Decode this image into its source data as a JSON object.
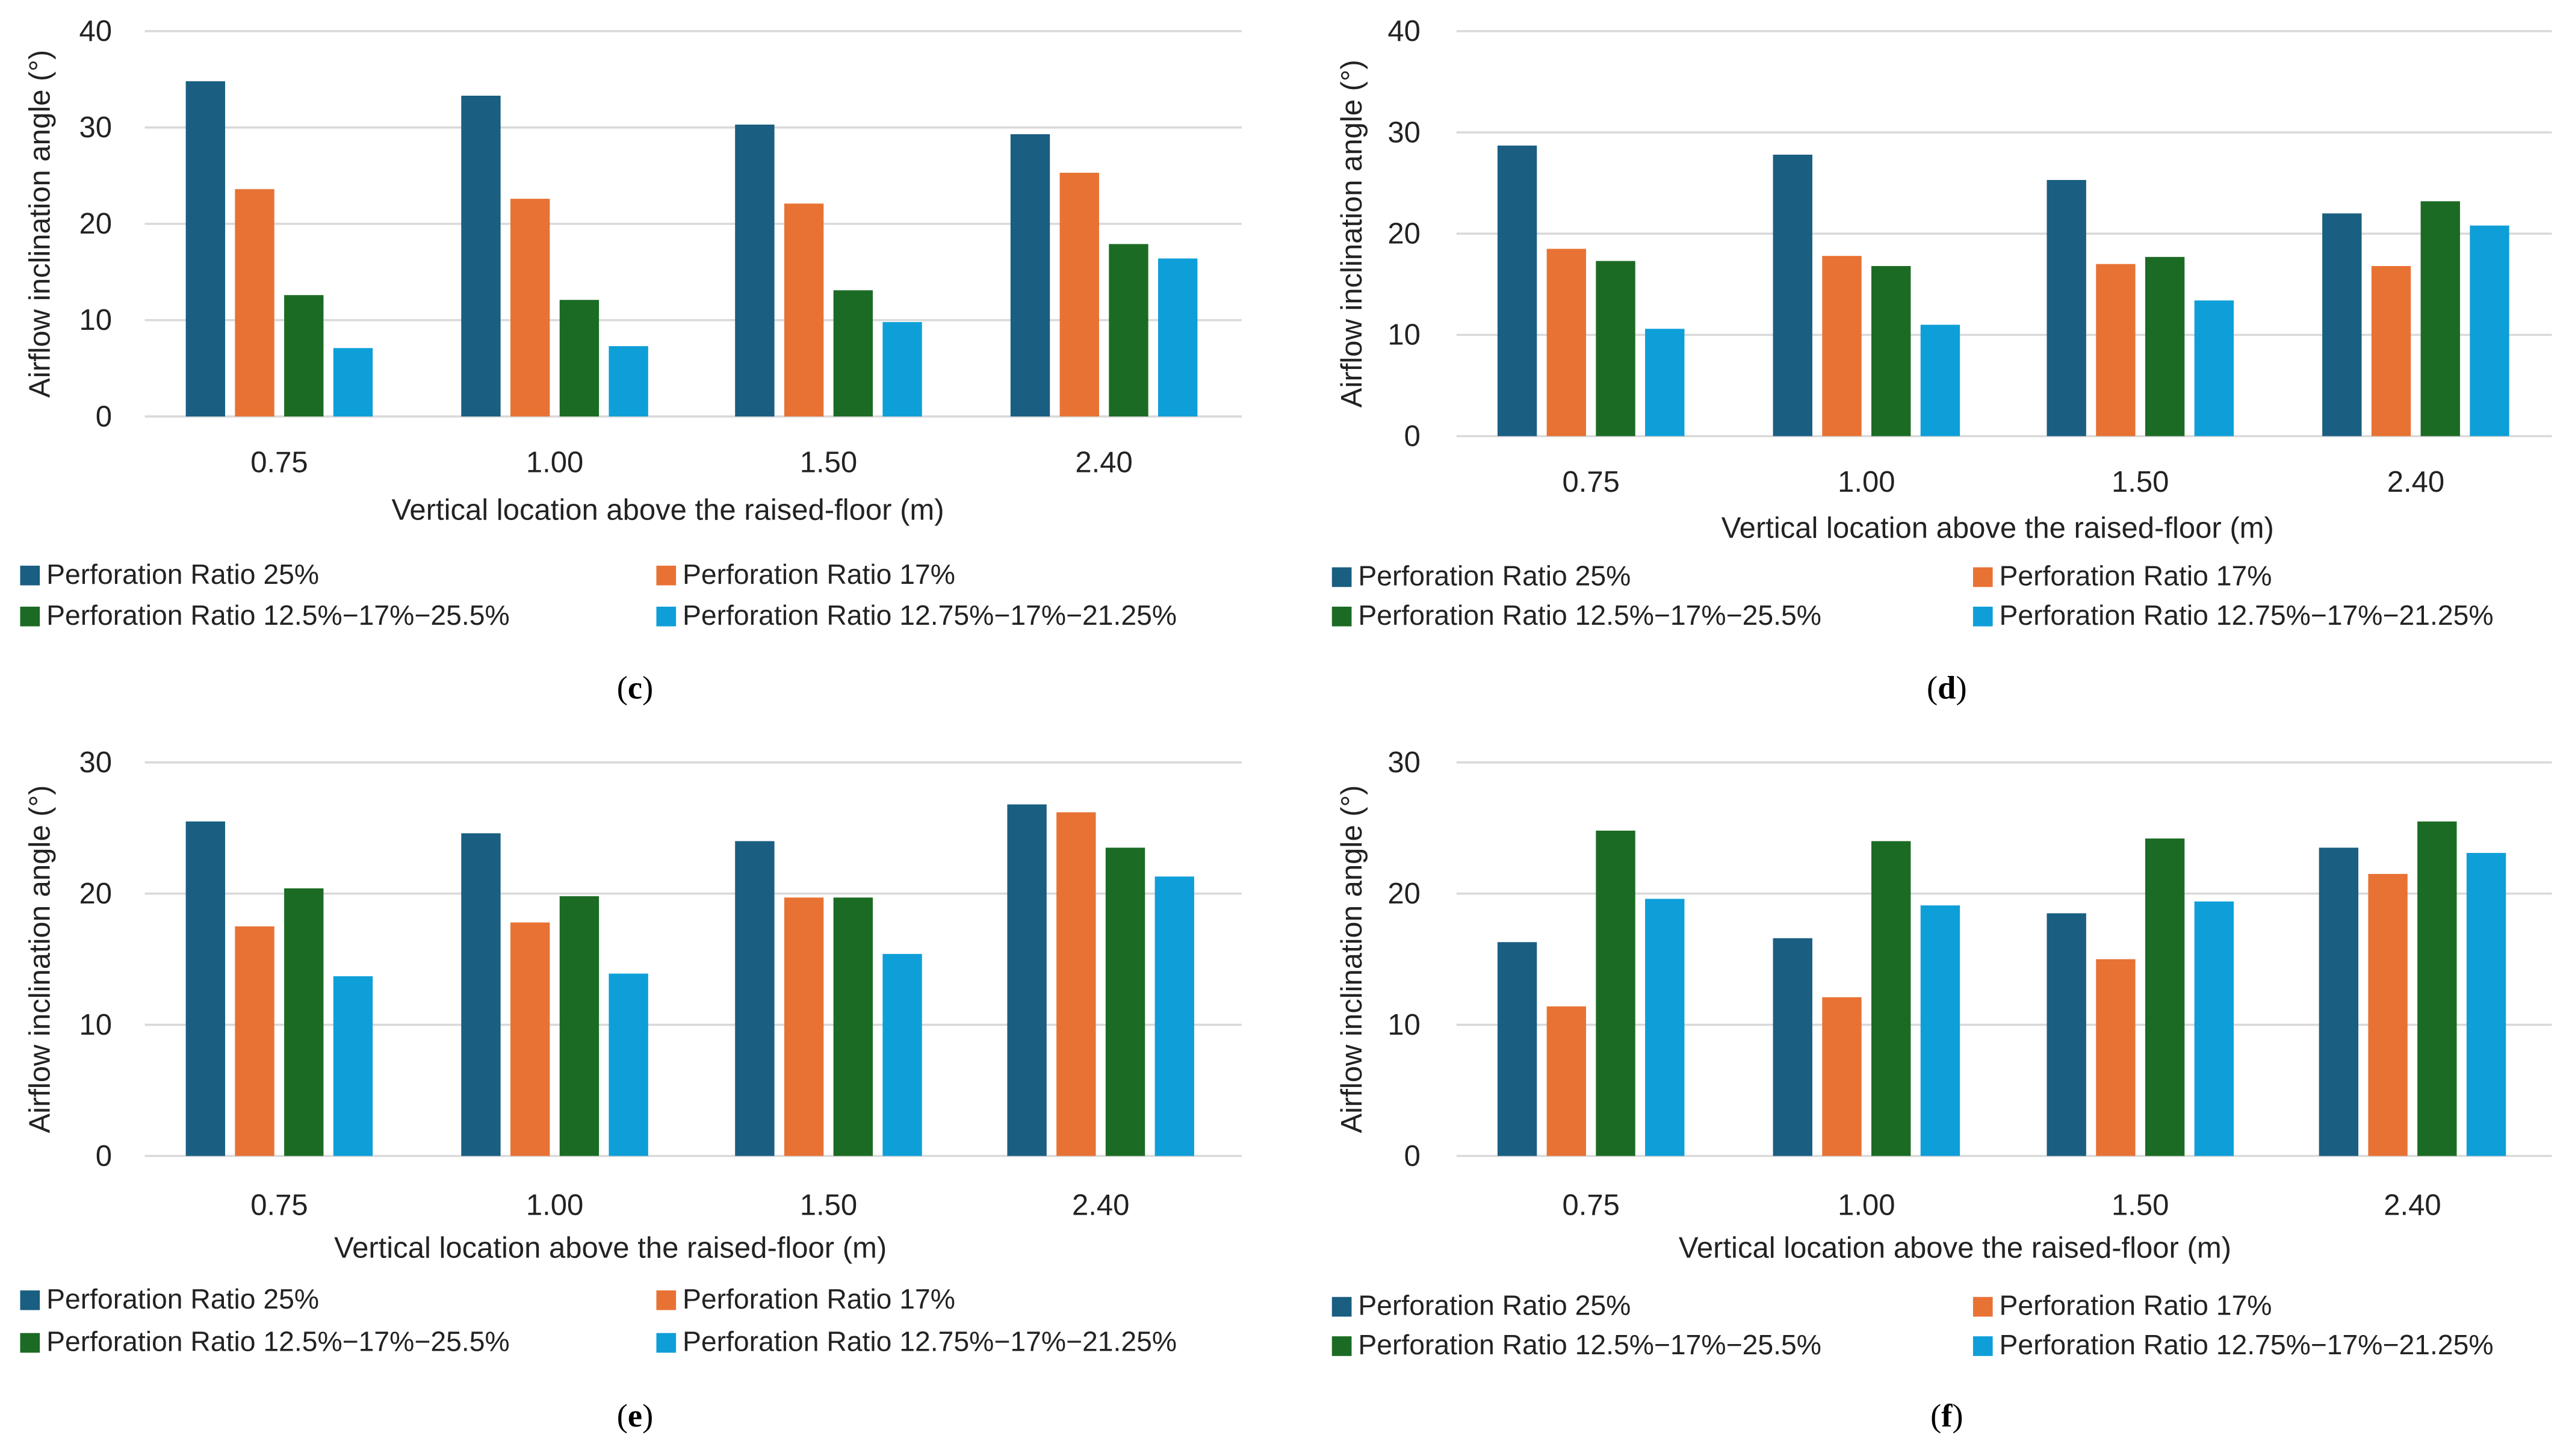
{
  "colors": {
    "s1": "#1a5e82",
    "s2": "#e87234",
    "s3": "#1c6b24",
    "s4": "#0e9fd8",
    "grid": "#d9d9d9"
  },
  "chart_data": [
    {
      "type": "bar",
      "panel": "c",
      "caption_letter": "c",
      "ylabel": "Airflow inclination angle (°)",
      "xlabel": "Vertical location above the raised-floor (m)",
      "ylim": [
        0,
        40
      ],
      "yticks": [
        "0",
        "10",
        "20",
        "30",
        "40"
      ],
      "categories": [
        "0.75",
        "1.00",
        "1.50",
        "2.40"
      ],
      "legend_position": "bottom",
      "series": [
        {
          "name": "Perforation Ratio 25%",
          "values": [
            34.8,
            33.3,
            30.3,
            29.3
          ]
        },
        {
          "name": "Perforation Ratio 17%",
          "values": [
            23.6,
            22.6,
            22.1,
            25.3
          ]
        },
        {
          "name": "Perforation Ratio 12.5%−17%−25.5%",
          "values": [
            12.6,
            12.1,
            13.1,
            17.9
          ]
        },
        {
          "name": "Perforation Ratio 12.75%−17%−21.25%",
          "values": [
            7.1,
            7.3,
            9.8,
            16.4
          ]
        }
      ]
    },
    {
      "type": "bar",
      "panel": "d",
      "caption_letter": "d",
      "ylabel": "Airflow inclination angle (°)",
      "xlabel": "Vertical location above the raised-floor (m)",
      "ylim": [
        0,
        40
      ],
      "yticks": [
        "0",
        "10",
        "20",
        "30",
        "40"
      ],
      "categories": [
        "0.75",
        "1.00",
        "1.50",
        "2.40"
      ],
      "legend_position": "bottom",
      "series": [
        {
          "name": "Perforation Ratio 25%",
          "values": [
            28.7,
            27.8,
            25.3,
            22.0
          ]
        },
        {
          "name": "Perforation Ratio 17%",
          "values": [
            18.5,
            17.8,
            17.0,
            16.8
          ]
        },
        {
          "name": "Perforation Ratio 12.5%−17%−25.5%",
          "values": [
            17.3,
            16.8,
            17.7,
            23.2
          ]
        },
        {
          "name": "Perforation Ratio 12.75%−17%−21.25%",
          "values": [
            10.6,
            11.0,
            13.4,
            20.8
          ]
        }
      ]
    },
    {
      "type": "bar",
      "panel": "e",
      "caption_letter": "e",
      "ylabel": "Airflow inclination angle (°)",
      "xlabel": "Vertical location above the raised-floor (m)",
      "ylim": [
        0,
        30
      ],
      "yticks": [
        "0",
        "10",
        "20",
        "30"
      ],
      "categories": [
        "0.75",
        "1.00",
        "1.50",
        "2.40"
      ],
      "legend_position": "bottom",
      "series": [
        {
          "name": "Perforation Ratio 25%",
          "values": [
            25.5,
            24.6,
            24.0,
            26.8
          ]
        },
        {
          "name": "Perforation Ratio 17%",
          "values": [
            17.5,
            17.8,
            19.7,
            26.2
          ]
        },
        {
          "name": "Perforation Ratio 12.5%−17%−25.5%",
          "values": [
            20.4,
            19.8,
            19.7,
            23.5
          ]
        },
        {
          "name": "Perforation Ratio 12.75%−17%−21.25%",
          "values": [
            13.7,
            13.9,
            15.4,
            21.3
          ]
        }
      ]
    },
    {
      "type": "bar",
      "panel": "f",
      "caption_letter": "f",
      "ylabel": "Airflow inclination angle (°)",
      "xlabel": "Vertical location above the raised-floor (m)",
      "ylim": [
        0,
        30
      ],
      "yticks": [
        "0",
        "10",
        "20",
        "30"
      ],
      "categories": [
        "0.75",
        "1.00",
        "1.50",
        "2.40"
      ],
      "legend_position": "bottom",
      "series": [
        {
          "name": "Perforation Ratio 25%",
          "values": [
            16.3,
            16.6,
            18.5,
            23.5
          ]
        },
        {
          "name": "Perforation Ratio 17%",
          "values": [
            11.4,
            12.1,
            15.0,
            21.5
          ]
        },
        {
          "name": "Perforation Ratio 12.5%−17%−25.5%",
          "values": [
            24.8,
            24.0,
            24.2,
            25.5
          ]
        },
        {
          "name": "Perforation Ratio 12.75%−17%−21.25%",
          "values": [
            19.6,
            19.1,
            19.4,
            23.1
          ]
        }
      ]
    }
  ]
}
